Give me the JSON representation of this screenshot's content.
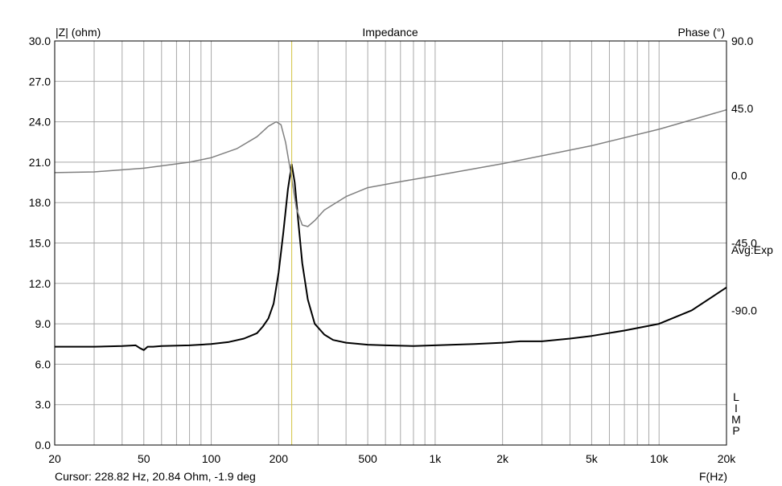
{
  "chart_data": {
    "type": "line",
    "title": "Impedance",
    "ylabel": "|Z| (ohm)",
    "y2label": "Phase (°)",
    "xlabel": "F(Hz)",
    "side_label": "Avg:Exp",
    "vertical_label": [
      "L",
      "I",
      "M",
      "P"
    ],
    "cursor_text": "Cursor: 228.82 Hz, 20.84 Ohm, -1.9 deg",
    "x_scale": "log",
    "xlim": [
      20,
      20000
    ],
    "ylim": [
      0,
      30
    ],
    "y2lim": [
      -180,
      90
    ],
    "grid": true,
    "cursor_x": 228.82,
    "cursor_color": "#d4c441",
    "x_ticks": [
      {
        "v": 20,
        "label": "20"
      },
      {
        "v": 50,
        "label": "50"
      },
      {
        "v": 100,
        "label": "100"
      },
      {
        "v": 200,
        "label": "200"
      },
      {
        "v": 500,
        "label": "500"
      },
      {
        "v": 1000,
        "label": "1k"
      },
      {
        "v": 2000,
        "label": "2k"
      },
      {
        "v": 5000,
        "label": "5k"
      },
      {
        "v": 10000,
        "label": "10k"
      },
      {
        "v": 20000,
        "label": "20k"
      }
    ],
    "y_ticks": [
      "0.0",
      "3.0",
      "6.0",
      "9.0",
      "12.0",
      "15.0",
      "18.0",
      "21.0",
      "24.0",
      "27.0",
      "30.0"
    ],
    "y2_ticks": [
      {
        "v": 90,
        "label": "90.0"
      },
      {
        "v": 45,
        "label": "45.0"
      },
      {
        "v": 0,
        "label": "0.0"
      },
      {
        "v": -45,
        "label": "-45.0"
      },
      {
        "v": -90,
        "label": "-90.0"
      }
    ],
    "series": [
      {
        "name": "|Z|",
        "axis": "left",
        "color": "#000000",
        "x": [
          20,
          30,
          40,
          46,
          48,
          50,
          52,
          55,
          60,
          80,
          100,
          120,
          140,
          160,
          170,
          180,
          190,
          200,
          210,
          220,
          228.82,
          236,
          245,
          255,
          270,
          290,
          320,
          350,
          400,
          500,
          600,
          800,
          1000,
          1200,
          1500,
          2000,
          2400,
          3000,
          4000,
          5000,
          7000,
          10000,
          14000,
          20000
        ],
        "y": [
          7.3,
          7.3,
          7.35,
          7.4,
          7.2,
          7.05,
          7.3,
          7.3,
          7.35,
          7.4,
          7.5,
          7.65,
          7.9,
          8.3,
          8.8,
          9.4,
          10.5,
          12.8,
          15.8,
          19.0,
          20.84,
          19.5,
          16.5,
          13.5,
          10.8,
          9.0,
          8.2,
          7.8,
          7.6,
          7.45,
          7.4,
          7.35,
          7.4,
          7.45,
          7.5,
          7.6,
          7.7,
          7.7,
          7.9,
          8.1,
          8.5,
          9.0,
          10.0,
          11.7
        ]
      },
      {
        "name": "Phase",
        "axis": "right",
        "color": "#808080",
        "x": [
          20,
          30,
          50,
          80,
          100,
          130,
          160,
          180,
          195,
          205,
          215,
          228.82,
          240,
          255,
          270,
          290,
          320,
          400,
          500,
          700,
          1000,
          2000,
          5000,
          10000,
          20000
        ],
        "y": [
          2,
          2.5,
          5,
          9,
          12,
          18,
          26,
          33,
          36,
          34,
          22,
          -1.9,
          -22,
          -33,
          -34,
          -30,
          -23,
          -14,
          -8,
          -4,
          0,
          8,
          20,
          31,
          44
        ]
      }
    ]
  }
}
